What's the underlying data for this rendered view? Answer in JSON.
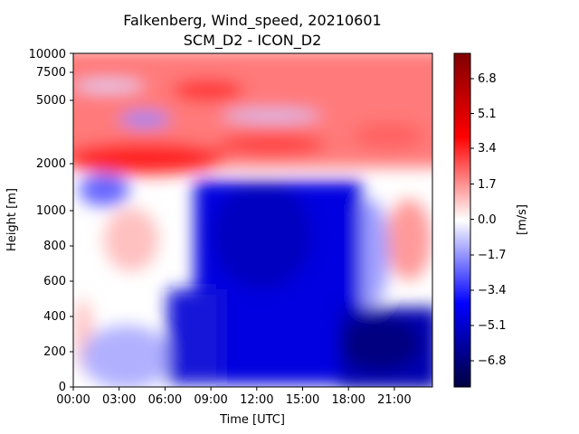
{
  "chart_data": {
    "type": "heatmap",
    "title": "Falkenberg, Wind_speed, 20210601",
    "subtitle": "SCM_D2 - ICON_D2",
    "xlabel": "Time [UTC]",
    "ylabel": "Height [m]",
    "colorbar_label": "[m/s]",
    "colormap": "seismic",
    "x_ticks": [
      "00:00",
      "03:00",
      "06:00",
      "09:00",
      "12:00",
      "15:00",
      "18:00",
      "21:00"
    ],
    "x_range_hours": [
      0,
      23.5
    ],
    "y_ticks": [
      "0",
      "200",
      "400",
      "600",
      "800",
      "1000",
      "2000",
      "5000",
      "7500",
      "10000"
    ],
    "y_scale": "piecewise (linear 0-1000 m, compressed above 1000 m)",
    "colorbar_ticks": [
      "6.8",
      "5.1",
      "3.4",
      "1.7",
      "0.0",
      "−1.7",
      "−3.4",
      "−5.1",
      "−6.8"
    ],
    "color_range": [
      -8,
      8
    ],
    "colors": {
      "max": "#800000",
      "positive": "#ff0000",
      "zero": "#ffffff",
      "negative": "#0000ff",
      "min": "#000040"
    },
    "regions": [
      {
        "time_range": [
          "00:00",
          "24:00"
        ],
        "height_range": [
          2000,
          10000
        ],
        "value_approx": 2.5,
        "description": "positive difference aloft"
      },
      {
        "time_range": [
          "02:00",
          "04:00"
        ],
        "height_range": [
          1000,
          1600
        ],
        "value_approx": -2.0,
        "description": "negative patch"
      },
      {
        "time_range": [
          "04:00",
          "06:00"
        ],
        "height_range": [
          650,
          1000
        ],
        "value_approx": 1.5,
        "description": "positive patch"
      },
      {
        "time_range": [
          "06:00",
          "17:00"
        ],
        "height_range": [
          0,
          2000
        ],
        "value_approx": -5.5,
        "description": "strong negative core"
      },
      {
        "time_range": [
          "17:00",
          "24:00"
        ],
        "height_range": [
          0,
          400
        ],
        "value_approx": -6.5,
        "description": "strong negative near surface"
      },
      {
        "time_range": [
          "20:00",
          "24:00"
        ],
        "height_range": [
          600,
          1000
        ],
        "value_approx": 2.0,
        "description": "positive patch"
      }
    ]
  }
}
